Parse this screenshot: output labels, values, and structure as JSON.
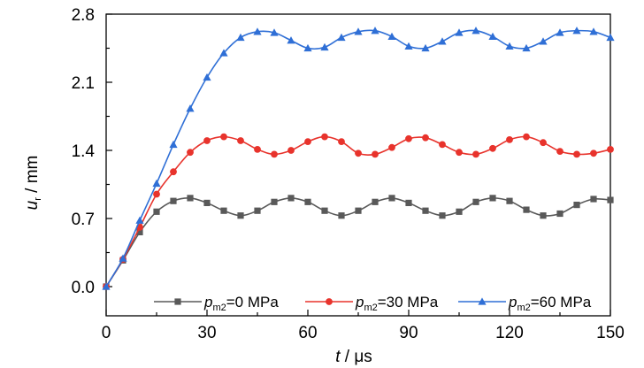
{
  "chart_data": {
    "type": "line",
    "title": "",
    "xlabel": {
      "var": "t",
      "unit": " / μs"
    },
    "ylabel": {
      "var": "u",
      "sub": "r",
      "unit": " / mm"
    },
    "xlim": [
      0,
      150
    ],
    "ylim": [
      -0.3,
      2.8
    ],
    "xticks": [
      0,
      30,
      60,
      90,
      120,
      150
    ],
    "xtick_labels": [
      "0",
      "30",
      "60",
      "90",
      "120",
      "150"
    ],
    "yticks": [
      0,
      0.7,
      1.4,
      2.1,
      2.8
    ],
    "ytick_labels": [
      "0.0",
      "0.7",
      "1.4",
      "2.1",
      "2.8"
    ],
    "grid": false,
    "legend_placement": "bottom-right",
    "series": [
      {
        "name": {
          "var": "p",
          "sub": "m2",
          "rest": "=0 MPa"
        },
        "color": "#595959",
        "marker": "square",
        "x": [
          0,
          5,
          10,
          15,
          20,
          25,
          30,
          35,
          40,
          45,
          50,
          55,
          60,
          65,
          70,
          75,
          80,
          85,
          90,
          95,
          100,
          105,
          110,
          115,
          120,
          125,
          130,
          135,
          140,
          145,
          150
        ],
        "y": [
          0.0,
          0.27,
          0.56,
          0.77,
          0.88,
          0.91,
          0.86,
          0.78,
          0.73,
          0.78,
          0.87,
          0.91,
          0.87,
          0.78,
          0.73,
          0.78,
          0.87,
          0.91,
          0.86,
          0.78,
          0.73,
          0.77,
          0.87,
          0.91,
          0.88,
          0.79,
          0.73,
          0.75,
          0.84,
          0.9,
          0.89
        ]
      },
      {
        "name": {
          "var": "p",
          "sub": "m2",
          "rest": "=30 MPa"
        },
        "color": "#e8332c",
        "marker": "circle",
        "x": [
          0,
          5,
          10,
          15,
          20,
          25,
          30,
          35,
          40,
          45,
          50,
          55,
          60,
          65,
          70,
          75,
          80,
          85,
          90,
          95,
          100,
          105,
          110,
          115,
          120,
          125,
          130,
          135,
          140,
          145,
          150
        ],
        "y": [
          0.0,
          0.28,
          0.61,
          0.95,
          1.18,
          1.38,
          1.5,
          1.54,
          1.5,
          1.41,
          1.36,
          1.4,
          1.49,
          1.54,
          1.49,
          1.37,
          1.36,
          1.43,
          1.52,
          1.53,
          1.46,
          1.38,
          1.36,
          1.42,
          1.51,
          1.54,
          1.48,
          1.39,
          1.36,
          1.37,
          1.41
        ]
      },
      {
        "name": {
          "var": "p",
          "sub": "m2",
          "rest": "=60 MPa"
        },
        "color": "#2f6fd6",
        "marker": "triangle",
        "x": [
          0,
          5,
          10,
          15,
          20,
          25,
          30,
          35,
          40,
          45,
          50,
          55,
          60,
          65,
          70,
          75,
          80,
          85,
          90,
          95,
          100,
          105,
          110,
          115,
          120,
          125,
          130,
          135,
          140,
          145,
          150
        ],
        "y": [
          0.0,
          0.29,
          0.68,
          1.06,
          1.46,
          1.83,
          2.15,
          2.4,
          2.56,
          2.62,
          2.61,
          2.53,
          2.45,
          2.46,
          2.56,
          2.62,
          2.63,
          2.57,
          2.47,
          2.45,
          2.52,
          2.61,
          2.63,
          2.57,
          2.47,
          2.45,
          2.52,
          2.61,
          2.63,
          2.62,
          2.56
        ]
      }
    ]
  }
}
